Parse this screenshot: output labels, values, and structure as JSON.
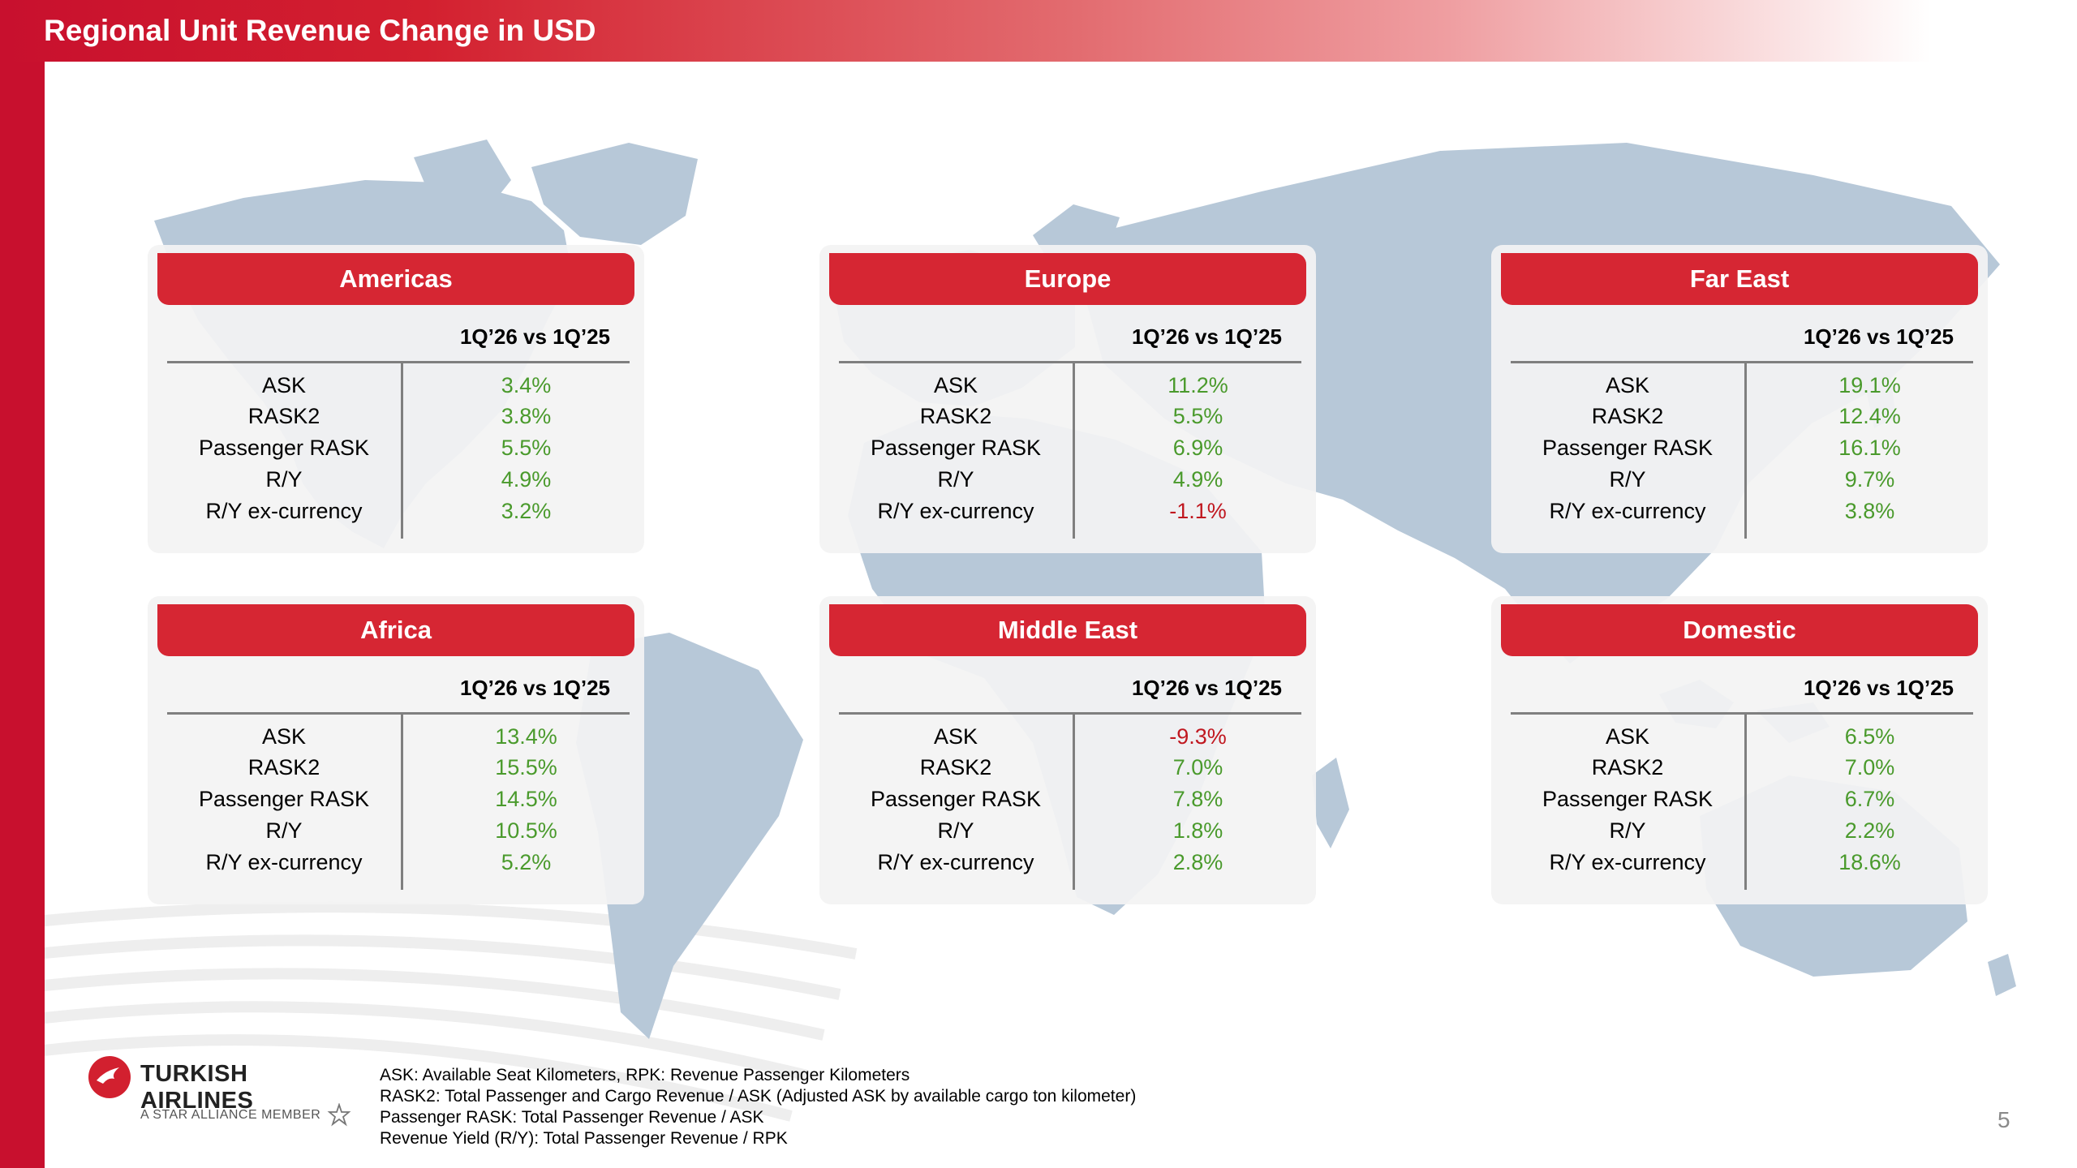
{
  "title": "Regional Unit Revenue Change in USD",
  "period_label": "1Q’26 vs 1Q’25",
  "regions": [
    {
      "name": "Americas",
      "rows": [
        {
          "metric": "ASK",
          "value": "3.4%",
          "sign": "pos"
        },
        {
          "metric": "RASK2",
          "value": "3.8%",
          "sign": "pos"
        },
        {
          "metric": "Passenger RASK",
          "value": "5.5%",
          "sign": "pos"
        },
        {
          "metric": "R/Y",
          "value": "4.9%",
          "sign": "pos"
        },
        {
          "metric": "R/Y ex-currency",
          "value": "3.2%",
          "sign": "pos"
        }
      ]
    },
    {
      "name": "Europe",
      "rows": [
        {
          "metric": "ASK",
          "value": "11.2%",
          "sign": "pos"
        },
        {
          "metric": "RASK2",
          "value": "5.5%",
          "sign": "pos"
        },
        {
          "metric": "Passenger RASK",
          "value": "6.9%",
          "sign": "pos"
        },
        {
          "metric": "R/Y",
          "value": "4.9%",
          "sign": "pos"
        },
        {
          "metric": "R/Y ex-currency",
          "value": "-1.1%",
          "sign": "neg"
        }
      ]
    },
    {
      "name": "Far East",
      "rows": [
        {
          "metric": "ASK",
          "value": "19.1%",
          "sign": "pos"
        },
        {
          "metric": "RASK2",
          "value": "12.4%",
          "sign": "pos"
        },
        {
          "metric": "Passenger RASK",
          "value": "16.1%",
          "sign": "pos"
        },
        {
          "metric": "R/Y",
          "value": "9.7%",
          "sign": "pos"
        },
        {
          "metric": "R/Y ex-currency",
          "value": "3.8%",
          "sign": "pos"
        }
      ]
    },
    {
      "name": "Africa",
      "rows": [
        {
          "metric": "ASK",
          "value": "13.4%",
          "sign": "pos"
        },
        {
          "metric": "RASK2",
          "value": "15.5%",
          "sign": "pos"
        },
        {
          "metric": "Passenger RASK",
          "value": "14.5%",
          "sign": "pos"
        },
        {
          "metric": "R/Y",
          "value": "10.5%",
          "sign": "pos"
        },
        {
          "metric": "R/Y ex-currency",
          "value": "5.2%",
          "sign": "pos"
        }
      ]
    },
    {
      "name": "Middle East",
      "rows": [
        {
          "metric": "ASK",
          "value": "-9.3%",
          "sign": "neg"
        },
        {
          "metric": "RASK2",
          "value": "7.0%",
          "sign": "pos"
        },
        {
          "metric": "Passenger RASK",
          "value": "7.8%",
          "sign": "pos"
        },
        {
          "metric": "R/Y",
          "value": "1.8%",
          "sign": "pos"
        },
        {
          "metric": "R/Y ex-currency",
          "value": "2.8%",
          "sign": "pos"
        }
      ]
    },
    {
      "name": "Domestic",
      "rows": [
        {
          "metric": "ASK",
          "value": "6.5%",
          "sign": "pos"
        },
        {
          "metric": "RASK2",
          "value": "7.0%",
          "sign": "pos"
        },
        {
          "metric": "Passenger RASK",
          "value": "6.7%",
          "sign": "pos"
        },
        {
          "metric": "R/Y",
          "value": "2.2%",
          "sign": "pos"
        },
        {
          "metric": "R/Y ex-currency",
          "value": "18.6%",
          "sign": "pos"
        }
      ]
    }
  ],
  "brand": {
    "name": "TURKISH AIRLINES",
    "tagline": "A STAR ALLIANCE MEMBER"
  },
  "notes": [
    "ASK: Available Seat Kilometers, RPK: Revenue Passenger Kilometers",
    "RASK2: Total Passenger and Cargo Revenue / ASK (Adjusted ASK by available cargo ton kilometer)",
    "Passenger RASK: Total Passenger Revenue / ASK",
    "Revenue Yield (R/Y): Total Passenger Revenue / RPK"
  ],
  "page_number": "5",
  "colors": {
    "accent": "#d62633",
    "positive": "#4a9a2c",
    "negative": "#c0171f",
    "map": "#b7c8d8"
  }
}
